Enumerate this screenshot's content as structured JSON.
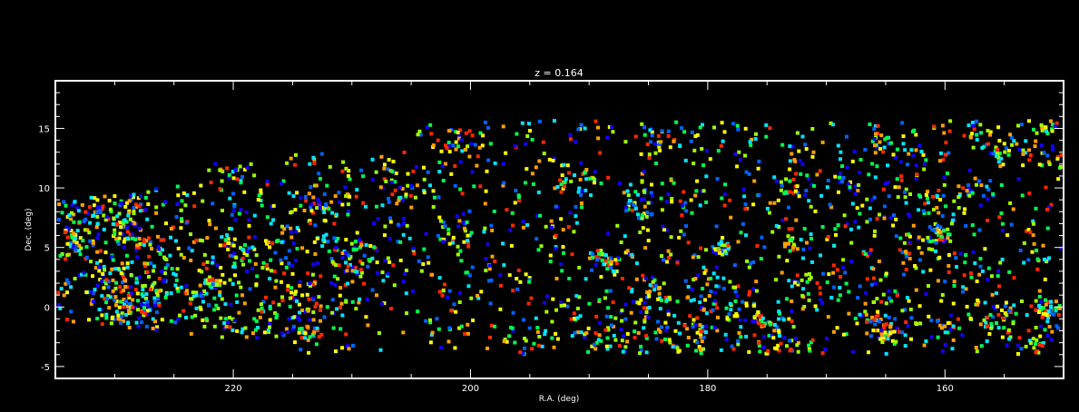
{
  "chart_data": {
    "type": "scatter",
    "title": "z = 0.164",
    "xlabel": "R.A. (deg)",
    "ylabel": "Dec. (deg)",
    "xlim": [
      235,
      150
    ],
    "ylim": [
      -6,
      19
    ],
    "x_ticks": [
      220,
      200,
      180,
      160
    ],
    "y_ticks": [
      -5,
      0,
      5,
      10,
      15
    ],
    "grid": false,
    "legend": "none",
    "colormap": [
      "#1400ff",
      "#0064ff",
      "#00e6ff",
      "#00ff50",
      "#a0ff00",
      "#ffff00",
      "#ffa000",
      "#ff2800"
    ],
    "marker_color_role": "points colored by a rainbow color scale (no colorbar shown)",
    "points_visible_estimate": "thousands of galaxies tracing filaments",
    "background_color": "#000000",
    "axis_color": "#ffffff"
  }
}
